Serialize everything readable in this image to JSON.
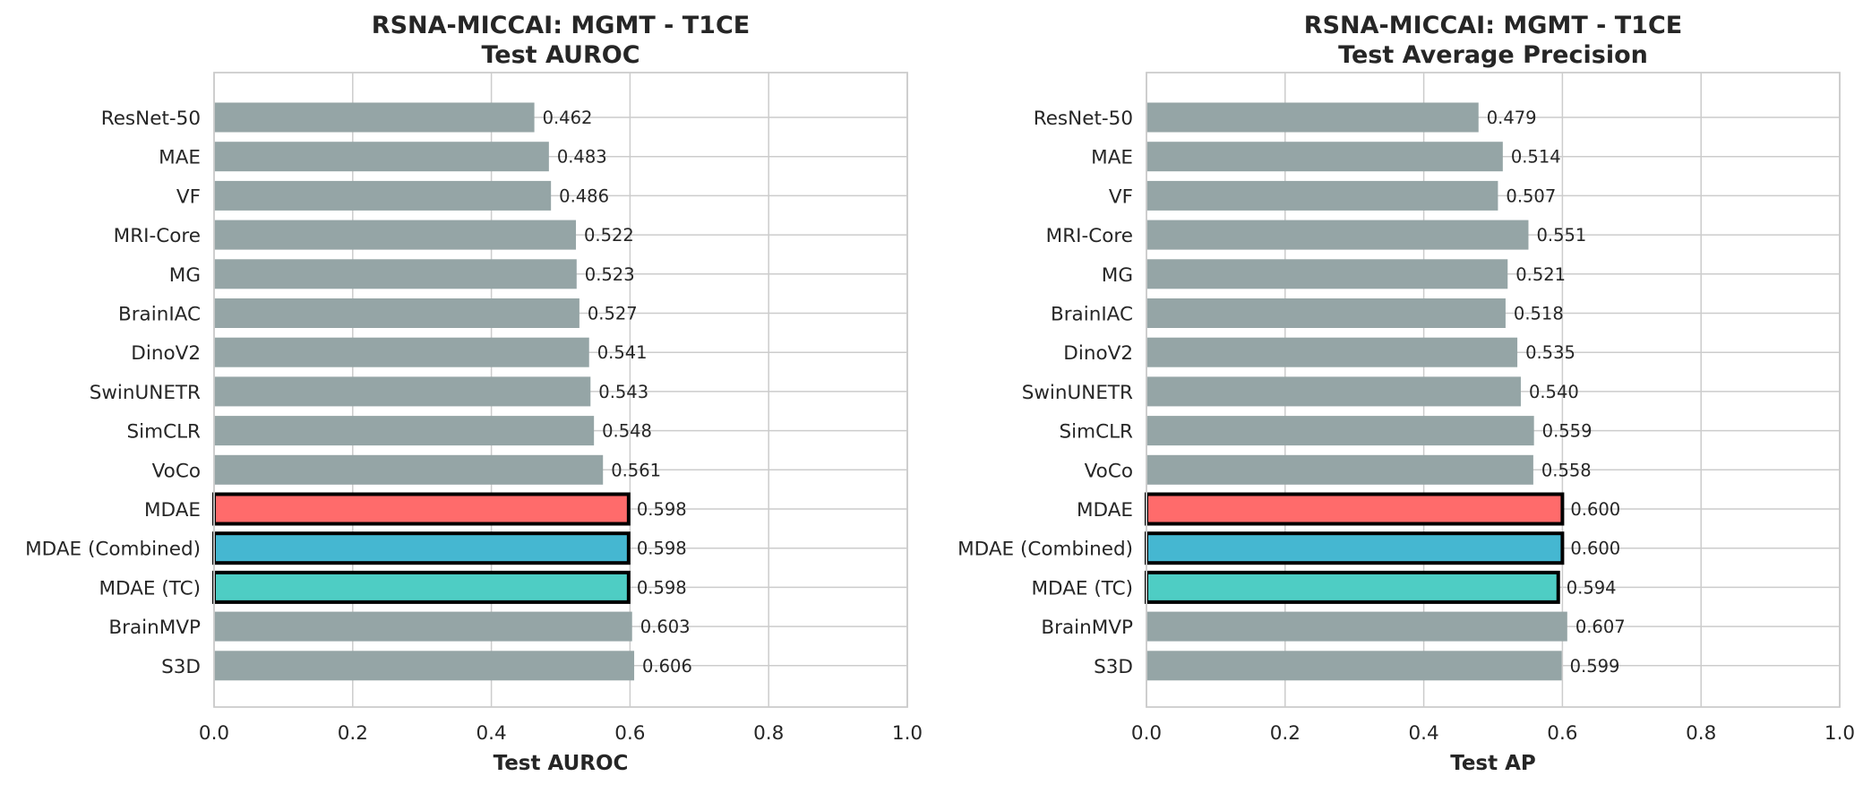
{
  "colors": {
    "default_bar": "#95a5a6",
    "grid": "#cccccc",
    "frame": "#cccccc",
    "highlight_edge": "#000000"
  },
  "chart_data": [
    {
      "type": "bar",
      "orientation": "horizontal",
      "title": "RSNA-MICCAI: MGMT - T1CE\nTest AUROC",
      "xlabel": "Test AUROC",
      "ylabel": "",
      "xlim": [
        0.0,
        1.0
      ],
      "xticks": [
        0.0,
        0.2,
        0.4,
        0.6,
        0.8,
        1.0
      ],
      "xtick_labels": [
        "0.0",
        "0.2",
        "0.4",
        "0.6",
        "0.8",
        "1.0"
      ],
      "grid": true,
      "categories": [
        "ResNet-50",
        "MAE",
        "VF",
        "MRI-Core",
        "MG",
        "BrainIAC",
        "DinoV2",
        "SwinUNETR",
        "SimCLR",
        "VoCo",
        "MDAE",
        "MDAE (Combined)",
        "MDAE (TC)",
        "BrainMVP",
        "S3D"
      ],
      "values": [
        0.462,
        0.483,
        0.486,
        0.522,
        0.523,
        0.527,
        0.541,
        0.543,
        0.548,
        0.561,
        0.598,
        0.598,
        0.598,
        0.603,
        0.606
      ],
      "value_labels": [
        "0.462",
        "0.483",
        "0.486",
        "0.522",
        "0.523",
        "0.527",
        "0.541",
        "0.543",
        "0.548",
        "0.561",
        "0.598",
        "0.598",
        "0.598",
        "0.603",
        "0.606"
      ],
      "bar_colors": [
        "#95a5a6",
        "#95a5a6",
        "#95a5a6",
        "#95a5a6",
        "#95a5a6",
        "#95a5a6",
        "#95a5a6",
        "#95a5a6",
        "#95a5a6",
        "#95a5a6",
        "#ff6b6b",
        "#45b7d1",
        "#4ecdc4",
        "#95a5a6",
        "#95a5a6"
      ],
      "highlighted": [
        false,
        false,
        false,
        false,
        false,
        false,
        false,
        false,
        false,
        false,
        true,
        true,
        true,
        false,
        false
      ]
    },
    {
      "type": "bar",
      "orientation": "horizontal",
      "title": "RSNA-MICCAI: MGMT - T1CE\nTest Average Precision",
      "xlabel": "Test AP",
      "ylabel": "",
      "xlim": [
        0.0,
        1.0
      ],
      "xticks": [
        0.0,
        0.2,
        0.4,
        0.6,
        0.8,
        1.0
      ],
      "xtick_labels": [
        "0.0",
        "0.2",
        "0.4",
        "0.6",
        "0.8",
        "1.0"
      ],
      "grid": true,
      "categories": [
        "ResNet-50",
        "MAE",
        "VF",
        "MRI-Core",
        "MG",
        "BrainIAC",
        "DinoV2",
        "SwinUNETR",
        "SimCLR",
        "VoCo",
        "MDAE",
        "MDAE (Combined)",
        "MDAE (TC)",
        "BrainMVP",
        "S3D"
      ],
      "values": [
        0.479,
        0.514,
        0.507,
        0.551,
        0.521,
        0.518,
        0.535,
        0.54,
        0.559,
        0.558,
        0.6,
        0.6,
        0.594,
        0.607,
        0.599
      ],
      "value_labels": [
        "0.479",
        "0.514",
        "0.507",
        "0.551",
        "0.521",
        "0.518",
        "0.535",
        "0.540",
        "0.559",
        "0.558",
        "0.600",
        "0.600",
        "0.594",
        "0.607",
        "0.599"
      ],
      "bar_colors": [
        "#95a5a6",
        "#95a5a6",
        "#95a5a6",
        "#95a5a6",
        "#95a5a6",
        "#95a5a6",
        "#95a5a6",
        "#95a5a6",
        "#95a5a6",
        "#95a5a6",
        "#ff6b6b",
        "#45b7d1",
        "#4ecdc4",
        "#95a5a6",
        "#95a5a6"
      ],
      "highlighted": [
        false,
        false,
        false,
        false,
        false,
        false,
        false,
        false,
        false,
        false,
        true,
        true,
        true,
        false,
        false
      ]
    }
  ]
}
